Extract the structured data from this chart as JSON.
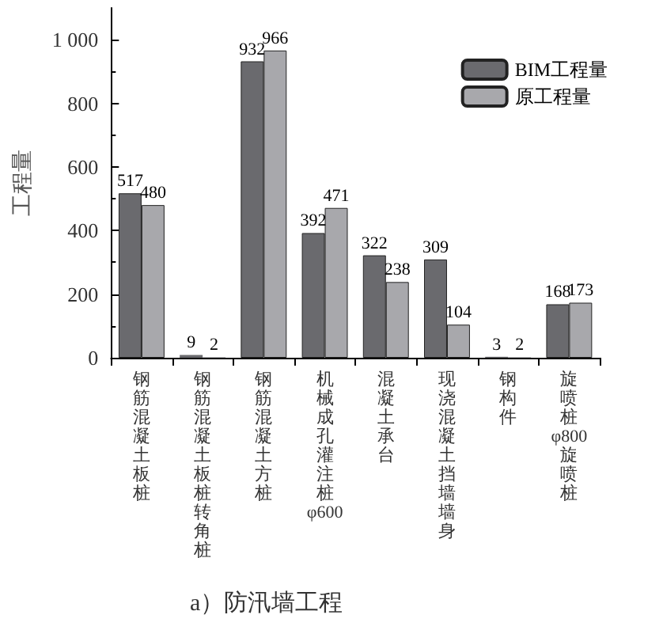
{
  "chart_data": {
    "type": "bar",
    "title": "a）防汛墙工程",
    "ylabel": "工程量",
    "categories": [
      "钢筋混凝土板桩",
      "钢筋混凝土板桩转角桩",
      "钢筋混凝土方桩",
      "机械成孔灌注桩φ600",
      "混凝土承台",
      "现浇混凝土挡墙墙身",
      "钢构件",
      "旋喷桩φ800旋喷桩"
    ],
    "series": [
      {
        "name": "BIM工程量",
        "color": "#6a6a6e",
        "values": [
          517,
          9,
          932,
          392,
          322,
          309,
          3,
          168
        ]
      },
      {
        "name": "原工程量",
        "color": "#a8a8ac",
        "values": [
          480,
          2,
          966,
          471,
          238,
          104,
          2,
          173
        ]
      }
    ],
    "ylim": [
      0,
      1100
    ],
    "yticks": [
      0,
      200,
      400,
      600,
      800,
      {
        "value": 1000,
        "label": "1 000"
      }
    ],
    "data_labels": true,
    "legend": "top right",
    "grid": false
  }
}
